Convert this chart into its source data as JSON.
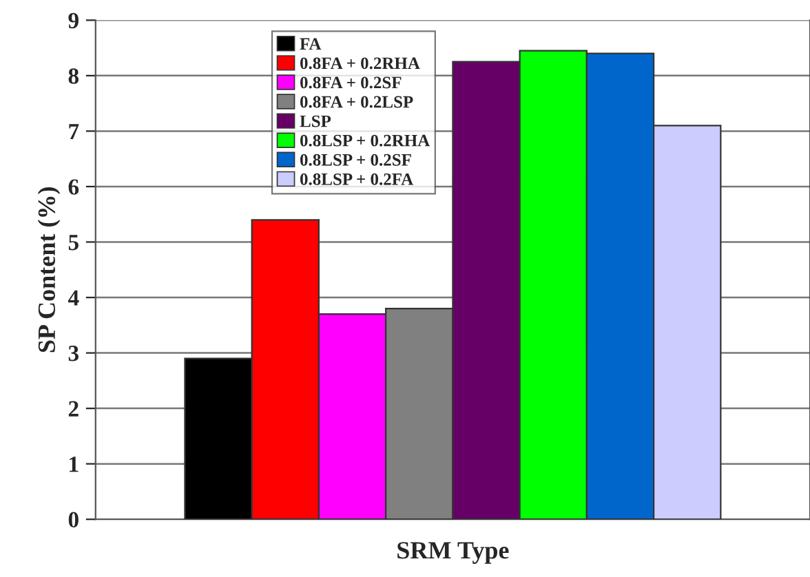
{
  "chart_data": {
    "type": "bar",
    "xlabel": "SRM Type",
    "ylabel": "SP Content (%)",
    "categories": [
      null
    ],
    "series": [
      {
        "name": "FA",
        "color": "#000000",
        "values": [
          2.9
        ]
      },
      {
        "name": "0.8FA + 0.2RHA",
        "color": "#ff0000",
        "values": [
          5.4
        ]
      },
      {
        "name": "0.8FA + 0.2SF",
        "color": "#ff00ff",
        "values": [
          3.7
        ]
      },
      {
        "name": "0.8FA + 0.2LSP",
        "color": "#808080",
        "values": [
          3.8
        ]
      },
      {
        "name": "LSP",
        "color": "#660066",
        "values": [
          8.25
        ]
      },
      {
        "name": "0.8LSP + 0.2RHA",
        "color": "#00ff00",
        "values": [
          8.45
        ]
      },
      {
        "name": "0.8LSP + 0.2SF",
        "color": "#0066cc",
        "values": [
          8.4
        ]
      },
      {
        "name": "0.8LSP + 0.2FA",
        "color": "#ccccff",
        "values": [
          7.1
        ]
      }
    ],
    "ylim": [
      0,
      9
    ],
    "yticks": [
      0,
      1,
      2,
      3,
      4,
      5,
      6,
      7,
      8,
      9
    ],
    "grid": "y",
    "legend": "top left"
  }
}
